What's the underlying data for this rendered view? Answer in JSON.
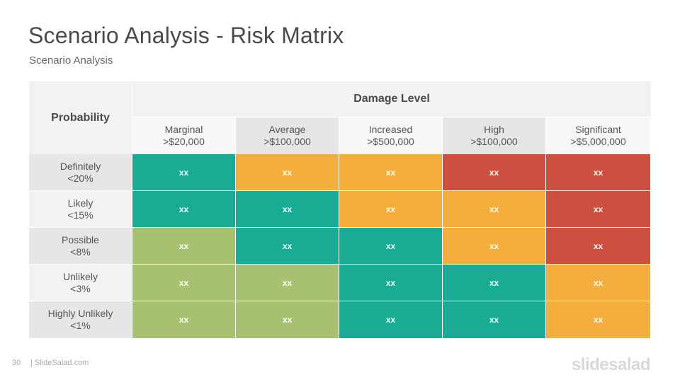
{
  "header": {
    "title": "Scenario Analysis - Risk Matrix",
    "subtitle": "Scenario Analysis"
  },
  "matrix": {
    "probability_label": "Probability",
    "damage_label": "Damage Level",
    "columns": [
      {
        "name": "Marginal",
        "value": ">$20,000"
      },
      {
        "name": "Average",
        "value": ">$100,000"
      },
      {
        "name": "Increased",
        "value": ">$500,000"
      },
      {
        "name": "High",
        "value": ">$100,000"
      },
      {
        "name": "Significant",
        "value": ">$5,000,000"
      }
    ],
    "rows": [
      {
        "name": "Definitely",
        "value": "<20%",
        "cells": [
          "xx",
          "xx",
          "xx",
          "xx",
          "xx"
        ],
        "levels": [
          "teal",
          "orange",
          "orange",
          "red",
          "red"
        ]
      },
      {
        "name": "Likely",
        "value": "<15%",
        "cells": [
          "xx",
          "xx",
          "xx",
          "xx",
          "xx"
        ],
        "levels": [
          "teal",
          "teal",
          "orange",
          "orange",
          "red"
        ]
      },
      {
        "name": "Possible",
        "value": "<8%",
        "cells": [
          "xx",
          "xx",
          "xx",
          "xx",
          "xx"
        ],
        "levels": [
          "green",
          "teal",
          "teal",
          "orange",
          "red"
        ]
      },
      {
        "name": "Unlikely",
        "value": "<3%",
        "cells": [
          "xx",
          "xx",
          "xx",
          "xx",
          "xx"
        ],
        "levels": [
          "green",
          "green",
          "teal",
          "teal",
          "orange"
        ]
      },
      {
        "name": "Highly Unlikely",
        "value": "<1%",
        "cells": [
          "xx",
          "xx",
          "xx",
          "xx",
          "xx"
        ],
        "levels": [
          "green",
          "green",
          "teal",
          "teal",
          "orange"
        ]
      }
    ]
  },
  "colors": {
    "teal": "#1aab94",
    "orange": "#f4ae3d",
    "red": "#cc4f3f",
    "green": "#a7c170"
  },
  "footer": {
    "page_number": "30",
    "site": "| SlideSalad.com",
    "logo": "slidesalad"
  }
}
